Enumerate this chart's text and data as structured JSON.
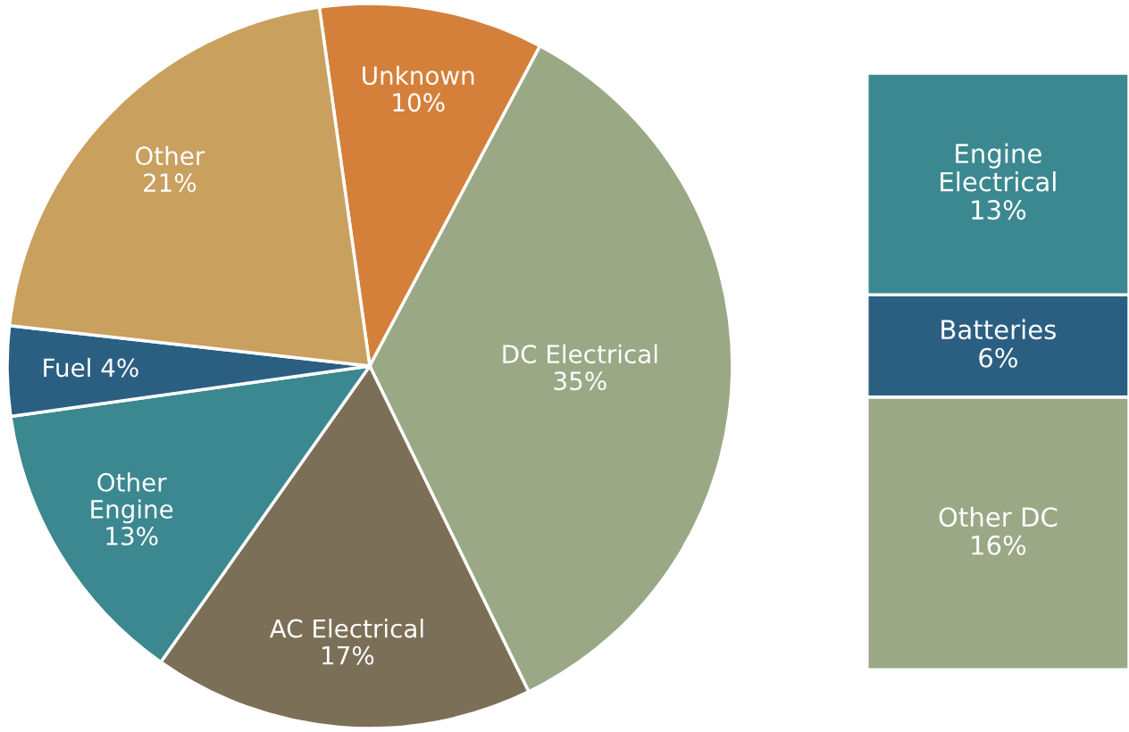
{
  "chart_data": [
    {
      "type": "pie",
      "categories": [
        "Unknown",
        "DC Electrical",
        "AC Electrical",
        "Other\nEngine",
        "Fuel",
        "Other"
      ],
      "values": [
        10,
        35,
        17,
        13,
        4,
        21
      ],
      "value_labels": [
        "10%",
        "35%",
        "17%",
        "13%",
        "4%",
        "21%"
      ],
      "colors": [
        "#d4803a",
        "#9aa886",
        "#7b6f57",
        "#3b8890",
        "#2b5f82",
        "#c9a05e"
      ]
    },
    {
      "type": "bar",
      "stacked": true,
      "categories": [
        null
      ],
      "series": [
        {
          "name": "Other DC",
          "color": "#9aa886",
          "values": [
            16
          ],
          "value_labels": [
            "16%"
          ]
        },
        {
          "name": "Batteries",
          "color": "#2b5f82",
          "values": [
            6
          ],
          "value_labels": [
            "6%"
          ]
        },
        {
          "name": "Engine\nElectrical",
          "color": "#3b8890",
          "values": [
            13
          ],
          "value_labels": [
            "13%"
          ]
        }
      ]
    }
  ]
}
